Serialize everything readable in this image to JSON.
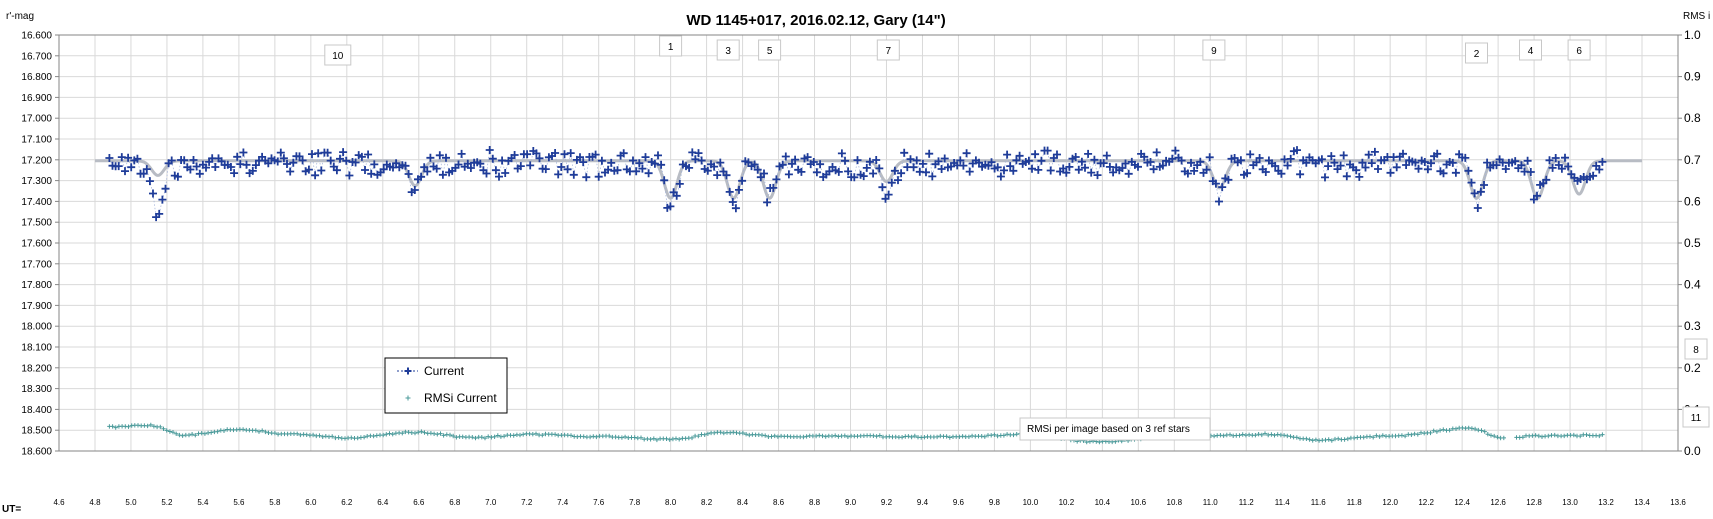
{
  "chart_data": {
    "type": "scatter",
    "title": "WD 1145+017, 2016.02.12,  Gary (14\")",
    "ylabel_left": "r'-mag",
    "ylabel_right": "RMS i",
    "xlabel": "UT=",
    "xlim": [
      4.6,
      13.6
    ],
    "ylim_left": [
      16.6,
      18.6
    ],
    "ylim_right": [
      0.0,
      1.0
    ],
    "grid": true,
    "x_ticks": [
      "4.6",
      "4.8",
      "5.0",
      "5.2",
      "5.4",
      "5.6",
      "5.8",
      "6.0",
      "6.2",
      "6.4",
      "6.6",
      "6.8",
      "7.0",
      "7.2",
      "7.4",
      "7.6",
      "7.8",
      "8.0",
      "8.2",
      "8.4",
      "8.6",
      "8.8",
      "9.0",
      "9.2",
      "9.4",
      "9.6",
      "9.8",
      "10.0",
      "10.2",
      "10.4",
      "10.6",
      "10.8",
      "11.0",
      "11.2",
      "11.4",
      "11.6",
      "11.8",
      "12.0",
      "12.2",
      "12.4",
      "12.6",
      "12.8",
      "13.0",
      "13.2",
      "13.4",
      "13.6"
    ],
    "y_ticks_left": [
      "16.600",
      "16.700",
      "16.800",
      "16.900",
      "17.000",
      "17.100",
      "17.200",
      "17.300",
      "17.400",
      "17.500",
      "17.600",
      "17.700",
      "17.800",
      "17.900",
      "18.000",
      "18.100",
      "18.200",
      "18.300",
      "18.400",
      "18.500",
      "18.600"
    ],
    "y_ticks_right": [
      "1.0",
      "0.9",
      "0.8",
      "0.7",
      "0.6",
      "0.5",
      "0.4",
      "0.3",
      "0.2",
      "0.1",
      "0.0"
    ],
    "series": [
      {
        "name": "Current",
        "axis": "left",
        "marker": "plus",
        "color": "#1f3c99",
        "x_start": 4.88,
        "x_end": 13.18,
        "baseline": 17.22,
        "scatter_amplitude": 0.05,
        "dips": [
          [
            5.15,
            0.22
          ],
          [
            6.58,
            0.12
          ],
          [
            8.0,
            0.2
          ],
          [
            8.35,
            0.17
          ],
          [
            8.55,
            0.18
          ],
          [
            9.2,
            0.12
          ],
          [
            11.05,
            0.14
          ],
          [
            12.48,
            0.17
          ],
          [
            12.82,
            0.15
          ],
          [
            13.05,
            0.11
          ]
        ]
      },
      {
        "name": "RMSi Current",
        "axis": "right",
        "marker": "plus-small",
        "color": "#4a9a9a",
        "x_start": 4.88,
        "x_end": 13.18,
        "anchors": [
          [
            4.88,
            0.058
          ],
          [
            5.1,
            0.062
          ],
          [
            5.3,
            0.038
          ],
          [
            5.6,
            0.052
          ],
          [
            5.9,
            0.04
          ],
          [
            6.2,
            0.032
          ],
          [
            6.6,
            0.045
          ],
          [
            6.9,
            0.032
          ],
          [
            7.2,
            0.04
          ],
          [
            7.6,
            0.035
          ],
          [
            8.0,
            0.028
          ],
          [
            8.3,
            0.044
          ],
          [
            8.6,
            0.035
          ],
          [
            9.0,
            0.036
          ],
          [
            9.6,
            0.034
          ],
          [
            10.0,
            0.04
          ],
          [
            10.35,
            0.022
          ],
          [
            10.8,
            0.034
          ],
          [
            11.3,
            0.04
          ],
          [
            11.6,
            0.026
          ],
          [
            12.0,
            0.036
          ],
          [
            12.45,
            0.055
          ],
          [
            12.62,
            0.032
          ],
          [
            12.8,
            0.036
          ],
          [
            13.18,
            0.038
          ]
        ]
      },
      {
        "name": "",
        "axis": "left",
        "marker": "line",
        "color": "#b8bcc4",
        "x_start": 4.8,
        "x_end": 13.4,
        "baseline": 17.205,
        "dips": [
          [
            5.15,
            0.07
          ],
          [
            6.58,
            0.12
          ],
          [
            8.0,
            0.18
          ],
          [
            8.35,
            0.18
          ],
          [
            8.55,
            0.18
          ],
          [
            9.2,
            0.1
          ],
          [
            11.05,
            0.13
          ],
          [
            12.48,
            0.18
          ],
          [
            12.82,
            0.18
          ],
          [
            13.05,
            0.16
          ]
        ]
      }
    ],
    "event_markers": [
      {
        "label": "10",
        "x": 6.15
      },
      {
        "label": "1",
        "x": 8.0
      },
      {
        "label": "3",
        "x": 8.32
      },
      {
        "label": "5",
        "x": 8.55
      },
      {
        "label": "7",
        "x": 9.21
      },
      {
        "label": "9",
        "x": 11.02
      },
      {
        "label": "2",
        "x": 12.48
      },
      {
        "label": "4",
        "x": 12.78
      },
      {
        "label": "6",
        "x": 13.05
      },
      {
        "label": "8",
        "x": 13.7
      },
      {
        "label": "11",
        "x": 13.7
      }
    ],
    "legend": {
      "placement": "lower-left",
      "entries": [
        "Current",
        "RMSi Current"
      ]
    },
    "annotation": "RMSi per image based on 3 ref stars"
  }
}
